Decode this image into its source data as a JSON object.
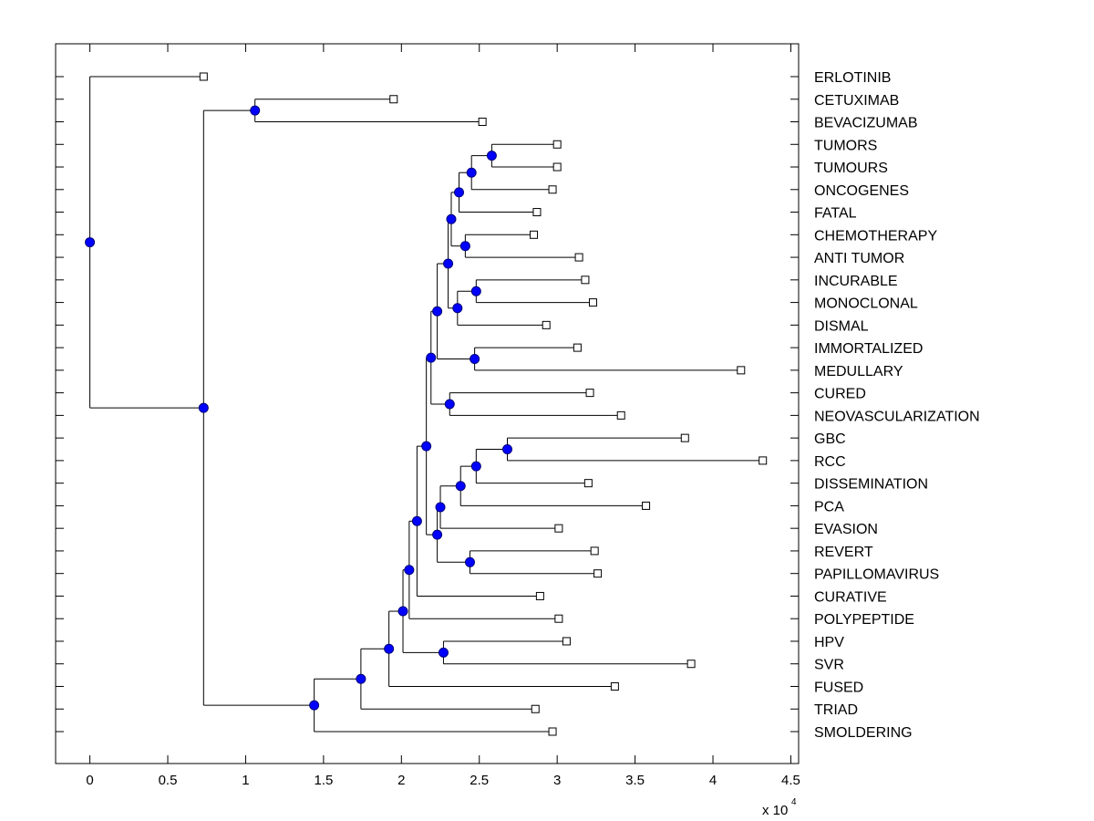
{
  "chart_data": {
    "type": "dendrogram",
    "title": "",
    "xlabel": "",
    "ylabel": "",
    "x_multiplier_label": "x 10",
    "x_multiplier_exponent": "4",
    "xlim": [
      -0.22,
      4.55
    ],
    "x_ticks": [
      0,
      0.5,
      1,
      1.5,
      2,
      2.5,
      3,
      3.5,
      4,
      4.5
    ],
    "x_tick_labels": [
      "0",
      "0.5",
      "1",
      "1.5",
      "2",
      "2.5",
      "3",
      "3.5",
      "4",
      "4.5"
    ],
    "grid": false,
    "legend": null,
    "orientation": "leaves-right",
    "units_note": "x values in units of 10^4",
    "colors": {
      "internal_node_fill": "#0000ff",
      "internal_node_stroke": "#00007a",
      "leaf_marker_fill": "#ffffff",
      "leaf_marker_stroke": "#000000",
      "line": "#000000"
    },
    "leaves": [
      {
        "label": "ERLOTINIB",
        "x": 0.73
      },
      {
        "label": "CETUXIMAB",
        "x": 1.95
      },
      {
        "label": "BEVACIZUMAB",
        "x": 2.52
      },
      {
        "label": "TUMORS",
        "x": 3.0
      },
      {
        "label": "TUMOURS",
        "x": 3.0
      },
      {
        "label": "ONCOGENES",
        "x": 2.97
      },
      {
        "label": "FATAL",
        "x": 2.87
      },
      {
        "label": "CHEMOTHERAPY",
        "x": 2.85
      },
      {
        "label": "ANTI TUMOR",
        "x": 3.14
      },
      {
        "label": "INCURABLE",
        "x": 3.18
      },
      {
        "label": "MONOCLONAL",
        "x": 3.23
      },
      {
        "label": "DISMAL",
        "x": 2.93
      },
      {
        "label": "IMMORTALIZED",
        "x": 3.13
      },
      {
        "label": "MEDULLARY",
        "x": 4.18
      },
      {
        "label": "CURED",
        "x": 3.21
      },
      {
        "label": "NEOVASCULARIZATION",
        "x": 3.41
      },
      {
        "label": "GBC",
        "x": 3.82
      },
      {
        "label": "RCC",
        "x": 4.32
      },
      {
        "label": "DISSEMINATION",
        "x": 3.2
      },
      {
        "label": "PCA",
        "x": 3.57
      },
      {
        "label": "EVASION",
        "x": 3.01
      },
      {
        "label": "REVERT",
        "x": 3.24
      },
      {
        "label": "PAPILLOMAVIRUS",
        "x": 3.26
      },
      {
        "label": "CURATIVE",
        "x": 2.89
      },
      {
        "label": "POLYPEPTIDE",
        "x": 3.01
      },
      {
        "label": "HPV",
        "x": 3.06
      },
      {
        "label": "SVR",
        "x": 3.86
      },
      {
        "label": "FUSED",
        "x": 3.37
      },
      {
        "label": "TRIAD",
        "x": 2.86
      },
      {
        "label": "SMOLDERING",
        "x": 2.97
      }
    ],
    "nodes": [
      {
        "id": "n1",
        "x": 2.58,
        "children": [
          "L3",
          "L4"
        ]
      },
      {
        "id": "n2",
        "x": 2.45,
        "children": [
          "n1",
          "L5"
        ]
      },
      {
        "id": "n3",
        "x": 2.37,
        "children": [
          "n2",
          "L6"
        ]
      },
      {
        "id": "n4",
        "x": 2.41,
        "children": [
          "L7",
          "L8"
        ]
      },
      {
        "id": "n5",
        "x": 2.32,
        "children": [
          "n3",
          "n4"
        ]
      },
      {
        "id": "n6",
        "x": 2.48,
        "children": [
          "L9",
          "L10"
        ]
      },
      {
        "id": "n7",
        "x": 2.36,
        "children": [
          "n6",
          "L11"
        ]
      },
      {
        "id": "n8",
        "x": 2.3,
        "children": [
          "n5",
          "n7"
        ]
      },
      {
        "id": "n9",
        "x": 2.47,
        "children": [
          "L12",
          "L13"
        ]
      },
      {
        "id": "n10",
        "x": 2.23,
        "children": [
          "n8",
          "n9"
        ]
      },
      {
        "id": "n11",
        "x": 2.31,
        "children": [
          "L14",
          "L15"
        ]
      },
      {
        "id": "n12",
        "x": 2.19,
        "children": [
          "n10",
          "n11"
        ]
      },
      {
        "id": "n13",
        "x": 2.68,
        "children": [
          "L16",
          "L17"
        ]
      },
      {
        "id": "n14",
        "x": 2.48,
        "children": [
          "n13",
          "L18"
        ]
      },
      {
        "id": "n15",
        "x": 2.38,
        "children": [
          "n14",
          "L19"
        ]
      },
      {
        "id": "n16",
        "x": 2.25,
        "children": [
          "n15",
          "L20"
        ]
      },
      {
        "id": "n17",
        "x": 2.44,
        "children": [
          "L21",
          "L22"
        ]
      },
      {
        "id": "n18",
        "x": 2.23,
        "children": [
          "n16",
          "n17"
        ]
      },
      {
        "id": "n19",
        "x": 2.16,
        "children": [
          "n12",
          "n18"
        ]
      },
      {
        "id": "n20",
        "x": 2.1,
        "children": [
          "n19",
          "L23"
        ]
      },
      {
        "id": "n21",
        "x": 2.05,
        "children": [
          "n20",
          "L24"
        ]
      },
      {
        "id": "n22",
        "x": 2.27,
        "children": [
          "L25",
          "L26"
        ]
      },
      {
        "id": "n23",
        "x": 2.01,
        "children": [
          "n21",
          "n22"
        ]
      },
      {
        "id": "n24",
        "x": 1.92,
        "children": [
          "n23",
          "L27"
        ]
      },
      {
        "id": "n25",
        "x": 1.74,
        "children": [
          "n24",
          "L28"
        ]
      },
      {
        "id": "n26",
        "x": 1.44,
        "children": [
          "n25",
          "L29"
        ]
      },
      {
        "id": "n27",
        "x": 1.06,
        "children": [
          "L1",
          "L2"
        ]
      },
      {
        "id": "n28",
        "x": 0.73,
        "children": [
          "n27",
          "n26"
        ]
      },
      {
        "id": "n29",
        "x": 0.0,
        "children": [
          "L0",
          "n28"
        ]
      }
    ],
    "root": "n29"
  }
}
